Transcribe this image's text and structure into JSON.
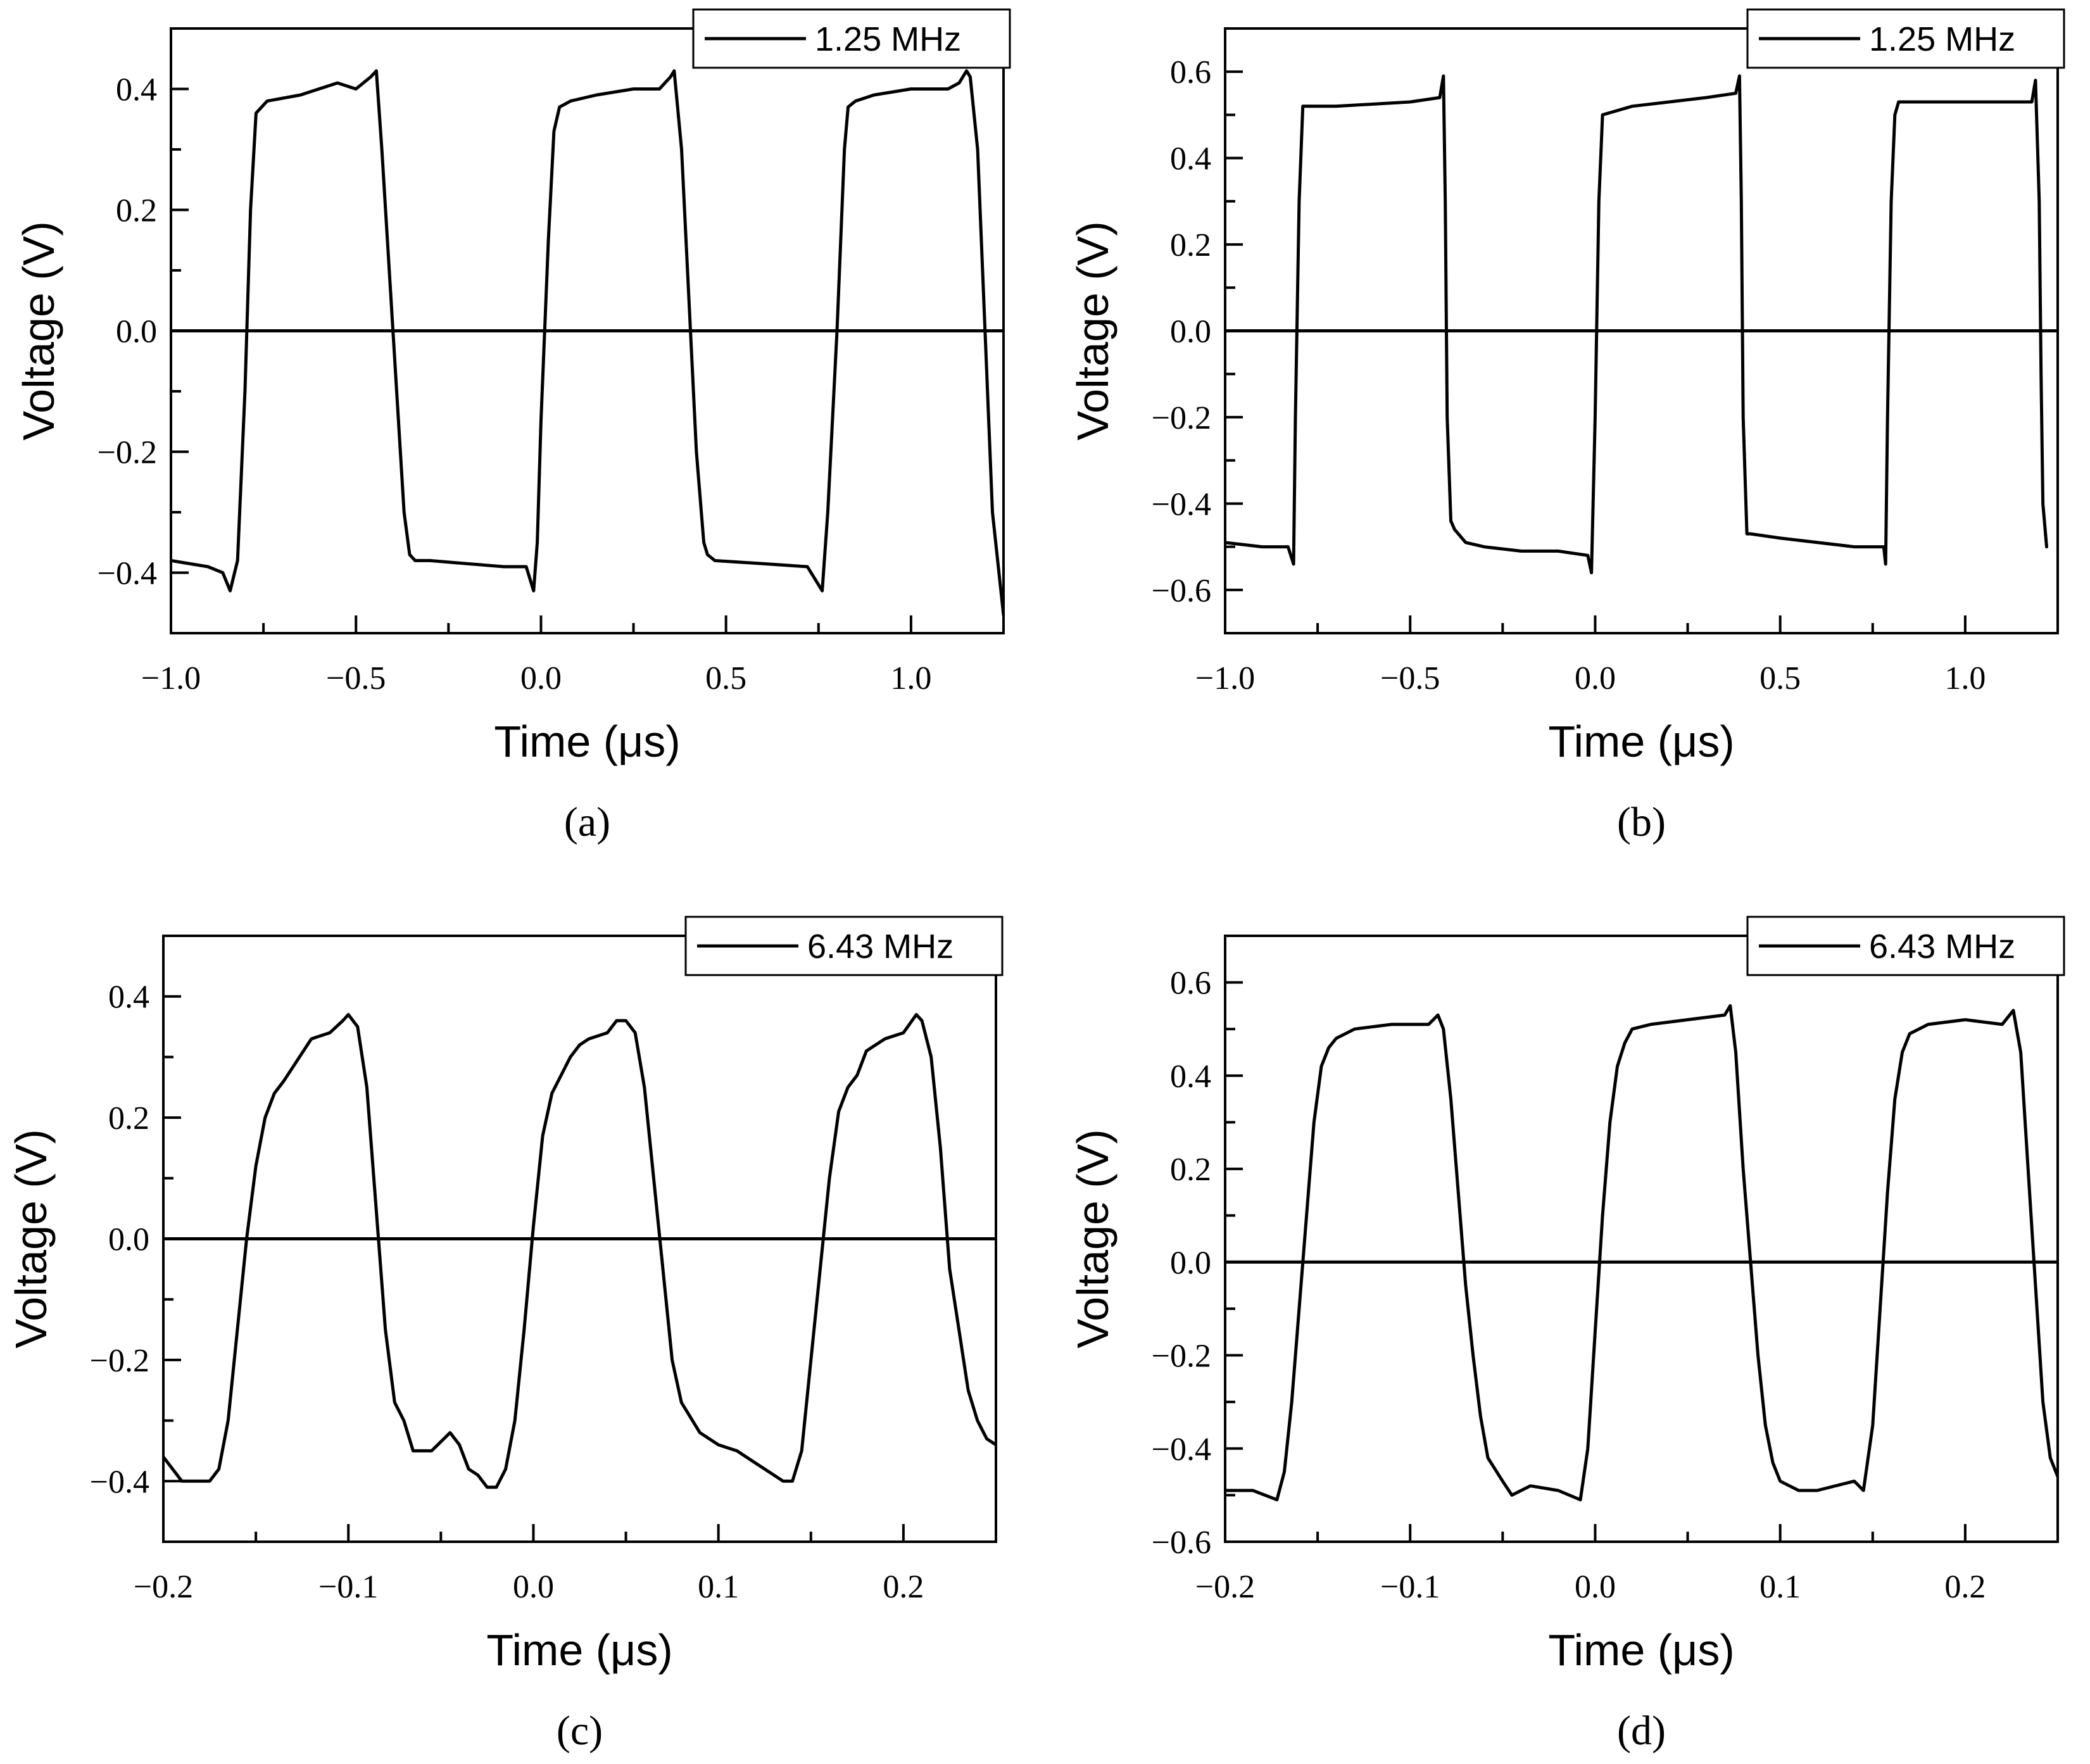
{
  "figure": {
    "panels": [
      "a",
      "b",
      "c",
      "d"
    ]
  },
  "chart_data": [
    {
      "id": "a",
      "type": "line",
      "caption": "(a)",
      "xlabel": "Time (μs)",
      "ylabel": "Voltage (V)",
      "xlim": [
        -1.0,
        1.25
      ],
      "ylim": [
        -0.5,
        0.5
      ],
      "xticks": [
        -1.0,
        -0.5,
        0.0,
        0.5,
        1.0
      ],
      "xtick_labels": [
        "−1.0",
        "−0.5",
        "0.0",
        "0.5",
        "1.0"
      ],
      "yticks": [
        -0.4,
        -0.2,
        0.0,
        0.2,
        0.4
      ],
      "ytick_labels": [
        "−0.4",
        "−0.2",
        "0.0",
        "0.2",
        "0.4"
      ],
      "zero_line": true,
      "legend": {
        "label": "1.25 MHz",
        "position": "top-right"
      },
      "series": [
        {
          "name": "1.25 MHz",
          "x": [
            -1.0,
            -0.9,
            -0.86,
            -0.84,
            -0.82,
            -0.8,
            -0.785,
            -0.77,
            -0.74,
            -0.65,
            -0.55,
            -0.5,
            -0.46,
            -0.445,
            -0.43,
            -0.41,
            -0.39,
            -0.37,
            -0.355,
            -0.34,
            -0.3,
            -0.2,
            -0.1,
            -0.04,
            -0.02,
            -0.01,
            0.0,
            0.02,
            0.035,
            0.05,
            0.08,
            0.15,
            0.25,
            0.32,
            0.35,
            0.36,
            0.38,
            0.4,
            0.42,
            0.44,
            0.45,
            0.47,
            0.6,
            0.72,
            0.75,
            0.76,
            0.775,
            0.8,
            0.82,
            0.83,
            0.85,
            0.9,
            1.0,
            1.1,
            1.13,
            1.15,
            1.16,
            1.18,
            1.2,
            1.22,
            1.25
          ],
          "y": [
            -0.38,
            -0.39,
            -0.4,
            -0.43,
            -0.38,
            -0.1,
            0.2,
            0.36,
            0.38,
            0.39,
            0.41,
            0.4,
            0.42,
            0.43,
            0.3,
            0.1,
            -0.1,
            -0.3,
            -0.37,
            -0.38,
            -0.38,
            -0.385,
            -0.39,
            -0.39,
            -0.43,
            -0.35,
            -0.15,
            0.15,
            0.33,
            0.37,
            0.38,
            0.39,
            0.4,
            0.4,
            0.42,
            0.43,
            0.3,
            0.05,
            -0.2,
            -0.35,
            -0.37,
            -0.38,
            -0.385,
            -0.39,
            -0.42,
            -0.43,
            -0.3,
            0.0,
            0.3,
            0.37,
            0.38,
            0.39,
            0.4,
            0.4,
            0.41,
            0.43,
            0.42,
            0.3,
            0.0,
            -0.3,
            -0.47
          ]
        }
      ]
    },
    {
      "id": "b",
      "type": "line",
      "caption": "(b)",
      "xlabel": "Time (μs)",
      "ylabel": "Voltage (V)",
      "xlim": [
        -1.0,
        1.25
      ],
      "ylim": [
        -0.7,
        0.7
      ],
      "xticks": [
        -1.0,
        -0.5,
        0.0,
        0.5,
        1.0
      ],
      "xtick_labels": [
        "−1.0",
        "−0.5",
        "0.0",
        "0.5",
        "1.0"
      ],
      "yticks": [
        -0.6,
        -0.4,
        -0.2,
        0.0,
        0.2,
        0.4,
        0.6
      ],
      "ytick_labels": [
        "−0.6",
        "−0.4",
        "−0.2",
        "0.0",
        "0.2",
        "0.4",
        "0.6"
      ],
      "zero_line": true,
      "legend": {
        "label": "1.25 MHz",
        "position": "top-right"
      },
      "series": [
        {
          "name": "1.25 MHz",
          "x": [
            -1.0,
            -0.9,
            -0.83,
            -0.815,
            -0.81,
            -0.8,
            -0.79,
            -0.7,
            -0.5,
            -0.42,
            -0.41,
            -0.405,
            -0.4,
            -0.39,
            -0.38,
            -0.35,
            -0.3,
            -0.2,
            -0.1,
            -0.02,
            -0.01,
            0.0,
            0.01,
            0.02,
            0.1,
            0.2,
            0.3,
            0.38,
            0.39,
            0.395,
            0.4,
            0.41,
            0.42,
            0.5,
            0.7,
            0.78,
            0.785,
            0.79,
            0.8,
            0.81,
            0.82,
            1.0,
            1.18,
            1.19,
            1.2,
            1.205,
            1.21,
            1.22
          ],
          "y": [
            -0.49,
            -0.5,
            -0.5,
            -0.54,
            -0.2,
            0.3,
            0.52,
            0.52,
            0.53,
            0.54,
            0.59,
            0.3,
            -0.2,
            -0.44,
            -0.46,
            -0.49,
            -0.5,
            -0.51,
            -0.51,
            -0.52,
            -0.56,
            -0.2,
            0.3,
            0.5,
            0.52,
            0.53,
            0.54,
            0.55,
            0.59,
            0.3,
            -0.2,
            -0.47,
            -0.47,
            -0.48,
            -0.5,
            -0.5,
            -0.54,
            -0.2,
            0.3,
            0.5,
            0.53,
            0.53,
            0.53,
            0.58,
            0.3,
            -0.1,
            -0.4,
            -0.5
          ]
        }
      ]
    },
    {
      "id": "c",
      "type": "line",
      "caption": "(c)",
      "xlabel": "Time (μs)",
      "ylabel": "Voltage (V)",
      "xlim": [
        -0.2,
        0.25
      ],
      "ylim": [
        -0.5,
        0.5
      ],
      "xticks": [
        -0.2,
        -0.1,
        0.0,
        0.1,
        0.2
      ],
      "xtick_labels": [
        "−0.2",
        "−0.1",
        "0.0",
        "0.1",
        "0.2"
      ],
      "yticks": [
        -0.4,
        -0.2,
        0.0,
        0.2,
        0.4
      ],
      "ytick_labels": [
        "−0.4",
        "−0.2",
        "0.0",
        "0.2",
        "0.4"
      ],
      "zero_line": true,
      "legend": {
        "label": "6.43 MHz",
        "position": "top-right"
      },
      "series": [
        {
          "name": "6.43 MHz",
          "x": [
            -0.2,
            -0.19,
            -0.175,
            -0.17,
            -0.165,
            -0.16,
            -0.155,
            -0.15,
            -0.145,
            -0.14,
            -0.135,
            -0.12,
            -0.11,
            -0.103,
            -0.1,
            -0.095,
            -0.09,
            -0.085,
            -0.08,
            -0.075,
            -0.07,
            -0.065,
            -0.055,
            -0.045,
            -0.04,
            -0.035,
            -0.03,
            -0.025,
            -0.02,
            -0.015,
            -0.01,
            -0.005,
            0.0,
            0.005,
            0.01,
            0.015,
            0.02,
            0.025,
            0.03,
            0.04,
            0.045,
            0.05,
            0.055,
            0.06,
            0.065,
            0.07,
            0.075,
            0.08,
            0.09,
            0.1,
            0.11,
            0.12,
            0.13,
            0.135,
            0.14,
            0.145,
            0.15,
            0.155,
            0.16,
            0.165,
            0.17,
            0.175,
            0.18,
            0.19,
            0.2,
            0.207,
            0.21,
            0.215,
            0.22,
            0.225,
            0.23,
            0.235,
            0.24,
            0.245,
            0.25
          ],
          "y": [
            -0.36,
            -0.4,
            -0.4,
            -0.38,
            -0.3,
            -0.15,
            0.0,
            0.12,
            0.2,
            0.24,
            0.26,
            0.33,
            0.34,
            0.36,
            0.37,
            0.35,
            0.25,
            0.05,
            -0.15,
            -0.27,
            -0.3,
            -0.35,
            -0.35,
            -0.32,
            -0.34,
            -0.38,
            -0.39,
            -0.41,
            -0.41,
            -0.38,
            -0.3,
            -0.15,
            0.02,
            0.17,
            0.24,
            0.27,
            0.3,
            0.32,
            0.33,
            0.34,
            0.36,
            0.36,
            0.34,
            0.25,
            0.1,
            -0.05,
            -0.2,
            -0.27,
            -0.32,
            -0.34,
            -0.35,
            -0.37,
            -0.39,
            -0.4,
            -0.4,
            -0.35,
            -0.2,
            -0.05,
            0.1,
            0.21,
            0.25,
            0.27,
            0.31,
            0.33,
            0.34,
            0.37,
            0.36,
            0.3,
            0.15,
            -0.05,
            -0.15,
            -0.25,
            -0.3,
            -0.33,
            -0.34
          ]
        }
      ]
    },
    {
      "id": "d",
      "type": "line",
      "caption": "(d)",
      "xlabel": "Time (μs)",
      "ylabel": "Voltage (V)",
      "xlim": [
        -0.2,
        0.25
      ],
      "ylim": [
        -0.6,
        0.7
      ],
      "xticks": [
        -0.2,
        -0.1,
        0.0,
        0.1,
        0.2
      ],
      "xtick_labels": [
        "−0.2",
        "−0.1",
        "0.0",
        "0.1",
        "0.2"
      ],
      "yticks": [
        -0.6,
        -0.4,
        -0.2,
        0.0,
        0.2,
        0.4,
        0.6
      ],
      "ytick_labels": [
        "−0.6",
        "−0.4",
        "−0.2",
        "0.0",
        "0.2",
        "0.4",
        "0.6"
      ],
      "zero_line": true,
      "legend": {
        "label": "6.43 MHz",
        "position": "top-right"
      },
      "series": [
        {
          "name": "6.43 MHz",
          "x": [
            -0.2,
            -0.185,
            -0.172,
            -0.168,
            -0.164,
            -0.16,
            -0.156,
            -0.152,
            -0.148,
            -0.144,
            -0.14,
            -0.13,
            -0.11,
            -0.09,
            -0.085,
            -0.082,
            -0.078,
            -0.074,
            -0.07,
            -0.066,
            -0.062,
            -0.058,
            -0.05,
            -0.045,
            -0.035,
            -0.02,
            -0.008,
            -0.004,
            0.0,
            0.004,
            0.008,
            0.012,
            0.016,
            0.02,
            0.03,
            0.05,
            0.07,
            0.073,
            0.076,
            0.08,
            0.084,
            0.088,
            0.092,
            0.096,
            0.1,
            0.105,
            0.11,
            0.12,
            0.14,
            0.145,
            0.15,
            0.154,
            0.158,
            0.162,
            0.166,
            0.17,
            0.18,
            0.2,
            0.22,
            0.226,
            0.23,
            0.234,
            0.238,
            0.242,
            0.246,
            0.25
          ],
          "y": [
            -0.49,
            -0.49,
            -0.51,
            -0.45,
            -0.3,
            -0.1,
            0.1,
            0.3,
            0.42,
            0.46,
            0.48,
            0.5,
            0.51,
            0.51,
            0.53,
            0.5,
            0.35,
            0.15,
            -0.05,
            -0.2,
            -0.33,
            -0.42,
            -0.47,
            -0.5,
            -0.48,
            -0.49,
            -0.51,
            -0.4,
            -0.15,
            0.1,
            0.3,
            0.42,
            0.47,
            0.5,
            0.51,
            0.52,
            0.53,
            0.55,
            0.45,
            0.2,
            0.0,
            -0.2,
            -0.35,
            -0.43,
            -0.47,
            -0.48,
            -0.49,
            -0.49,
            -0.47,
            -0.49,
            -0.35,
            -0.1,
            0.15,
            0.35,
            0.45,
            0.49,
            0.51,
            0.52,
            0.51,
            0.54,
            0.45,
            0.2,
            -0.05,
            -0.3,
            -0.42,
            -0.46
          ]
        }
      ]
    }
  ]
}
